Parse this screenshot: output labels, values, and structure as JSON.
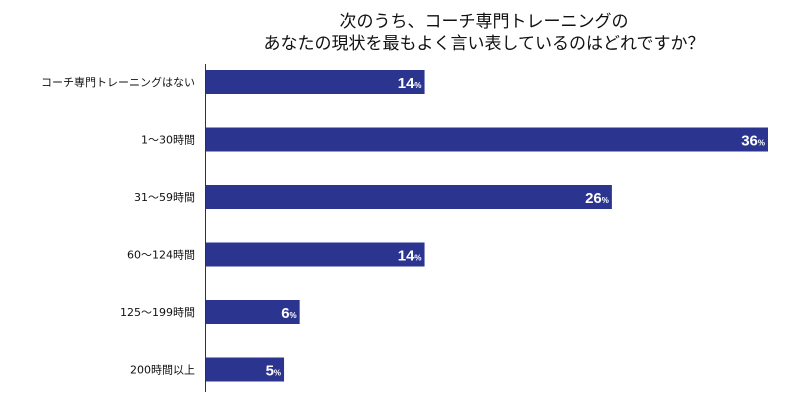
{
  "chart_data": {
    "type": "bar",
    "orientation": "horizontal",
    "title_lines": [
      "次のうち、コーチ専門トレーニングの",
      "あなたの現状を最もよく言い表しているのはどれですか？"
    ],
    "categories": [
      "コーチ専門トレーニングはない",
      "1〜30時間",
      "31〜59時間",
      "60〜124時間",
      "125〜199時間",
      "200時間以上"
    ],
    "values": [
      14,
      36,
      26,
      14,
      6,
      5
    ],
    "value_unit": "%",
    "xlim": [
      0,
      36
    ],
    "grid": false,
    "legend": "none",
    "bar_color": "#2B3590",
    "label_color": "#FFFFFF"
  }
}
